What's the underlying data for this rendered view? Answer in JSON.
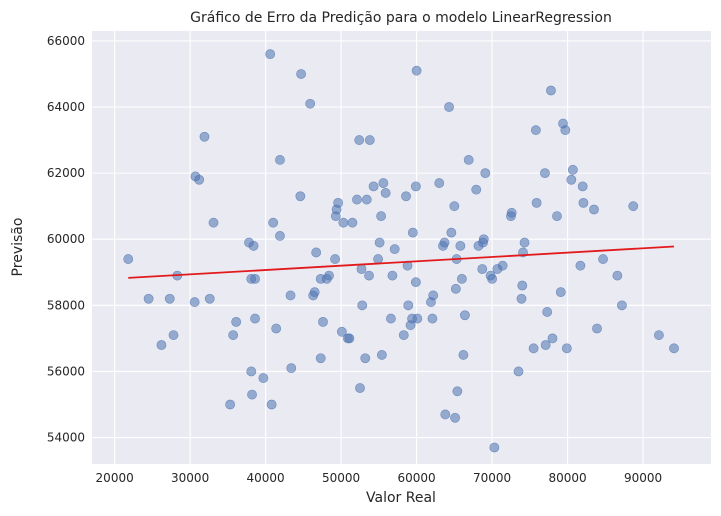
{
  "chart_data": {
    "type": "scatter",
    "title": "Gráfico de Erro da Predição para o modelo LinearRegression",
    "xlabel": "Valor Real",
    "ylabel": "Previsão",
    "xlim": [
      17000,
      99000
    ],
    "ylim": [
      53200,
      66300
    ],
    "xticks": [
      20000,
      30000,
      40000,
      50000,
      60000,
      70000,
      80000,
      90000
    ],
    "yticks": [
      54000,
      56000,
      58000,
      60000,
      62000,
      64000,
      66000
    ],
    "grid": true,
    "colors": {
      "background": "#eaeaf2",
      "points": "#4c72b0",
      "trend_line": "#e31a1c"
    },
    "series": [
      {
        "kind": "points",
        "points": [
          [
            21800,
            59400
          ],
          [
            24500,
            58200
          ],
          [
            26200,
            56800
          ],
          [
            27300,
            58200
          ],
          [
            27800,
            57100
          ],
          [
            28300,
            58900
          ],
          [
            30600,
            58100
          ],
          [
            30700,
            61900
          ],
          [
            31200,
            61800
          ],
          [
            31900,
            63100
          ],
          [
            32600,
            58200
          ],
          [
            33100,
            60500
          ],
          [
            35300,
            55000
          ],
          [
            35700,
            57100
          ],
          [
            36100,
            57500
          ],
          [
            37800,
            59900
          ],
          [
            38100,
            58800
          ],
          [
            38100,
            56000
          ],
          [
            38200,
            55300
          ],
          [
            38400,
            59800
          ],
          [
            38600,
            58800
          ],
          [
            38600,
            57600
          ],
          [
            39700,
            55800
          ],
          [
            40600,
            65600
          ],
          [
            40800,
            55000
          ],
          [
            41000,
            60500
          ],
          [
            41400,
            57300
          ],
          [
            41900,
            60100
          ],
          [
            41900,
            62400
          ],
          [
            43300,
            58300
          ],
          [
            43400,
            56100
          ],
          [
            44600,
            61300
          ],
          [
            44700,
            65000
          ],
          [
            45900,
            64100
          ],
          [
            46300,
            58300
          ],
          [
            46500,
            58400
          ],
          [
            46700,
            59600
          ],
          [
            47300,
            58800
          ],
          [
            47300,
            56400
          ],
          [
            47600,
            57500
          ],
          [
            48100,
            58800
          ],
          [
            48400,
            58900
          ],
          [
            49200,
            59400
          ],
          [
            49300,
            60700
          ],
          [
            49400,
            60900
          ],
          [
            49600,
            61100
          ],
          [
            50100,
            57200
          ],
          [
            50300,
            60500
          ],
          [
            50900,
            57000
          ],
          [
            51100,
            57000
          ],
          [
            51500,
            60500
          ],
          [
            52100,
            61200
          ],
          [
            52400,
            63000
          ],
          [
            52500,
            55500
          ],
          [
            52700,
            59100
          ],
          [
            52800,
            58000
          ],
          [
            53200,
            56400
          ],
          [
            53400,
            61200
          ],
          [
            53700,
            58900
          ],
          [
            53800,
            63000
          ],
          [
            54300,
            61600
          ],
          [
            54900,
            59400
          ],
          [
            55100,
            59900
          ],
          [
            55300,
            60700
          ],
          [
            55400,
            56500
          ],
          [
            55600,
            61700
          ],
          [
            55900,
            61400
          ],
          [
            56600,
            57600
          ],
          [
            56800,
            58900
          ],
          [
            57100,
            59700
          ],
          [
            58300,
            57100
          ],
          [
            58600,
            61300
          ],
          [
            58800,
            59200
          ],
          [
            58900,
            58000
          ],
          [
            59200,
            57400
          ],
          [
            59400,
            57600
          ],
          [
            59500,
            60200
          ],
          [
            59900,
            58700
          ],
          [
            59900,
            61600
          ],
          [
            60000,
            65100
          ],
          [
            60100,
            57600
          ],
          [
            61900,
            58100
          ],
          [
            62100,
            57600
          ],
          [
            62200,
            58300
          ],
          [
            63000,
            61700
          ],
          [
            63500,
            59800
          ],
          [
            63700,
            59900
          ],
          [
            63800,
            54700
          ],
          [
            64300,
            64000
          ],
          [
            64600,
            60200
          ],
          [
            65000,
            61000
          ],
          [
            65100,
            54600
          ],
          [
            65200,
            58500
          ],
          [
            65300,
            59400
          ],
          [
            65400,
            55400
          ],
          [
            65800,
            59800
          ],
          [
            66000,
            58800
          ],
          [
            66200,
            56500
          ],
          [
            66400,
            57700
          ],
          [
            66900,
            62400
          ],
          [
            67900,
            61500
          ],
          [
            68200,
            59800
          ],
          [
            68700,
            59100
          ],
          [
            68800,
            59900
          ],
          [
            68900,
            60000
          ],
          [
            69100,
            62000
          ],
          [
            69800,
            58900
          ],
          [
            70000,
            58800
          ],
          [
            70300,
            53700
          ],
          [
            70700,
            59100
          ],
          [
            71400,
            59200
          ],
          [
            72500,
            60700
          ],
          [
            72600,
            60800
          ],
          [
            73500,
            56000
          ],
          [
            73900,
            58200
          ],
          [
            74000,
            58600
          ],
          [
            74100,
            59600
          ],
          [
            74300,
            59900
          ],
          [
            75500,
            56700
          ],
          [
            75800,
            63300
          ],
          [
            75900,
            61100
          ],
          [
            77000,
            62000
          ],
          [
            77100,
            56800
          ],
          [
            77300,
            57800
          ],
          [
            77800,
            64500
          ],
          [
            78000,
            57000
          ],
          [
            78600,
            60700
          ],
          [
            79100,
            58400
          ],
          [
            79400,
            63500
          ],
          [
            79700,
            63300
          ],
          [
            79900,
            56700
          ],
          [
            80500,
            61800
          ],
          [
            80700,
            62100
          ],
          [
            81700,
            59200
          ],
          [
            82000,
            61600
          ],
          [
            82100,
            61100
          ],
          [
            83500,
            60900
          ],
          [
            83900,
            57300
          ],
          [
            84700,
            59400
          ],
          [
            86600,
            58900
          ],
          [
            87200,
            58000
          ],
          [
            88700,
            61000
          ],
          [
            92100,
            57100
          ],
          [
            94100,
            56700
          ]
        ]
      },
      {
        "kind": "line",
        "points": [
          [
            21800,
            58830
          ],
          [
            94100,
            59780
          ]
        ]
      }
    ]
  }
}
